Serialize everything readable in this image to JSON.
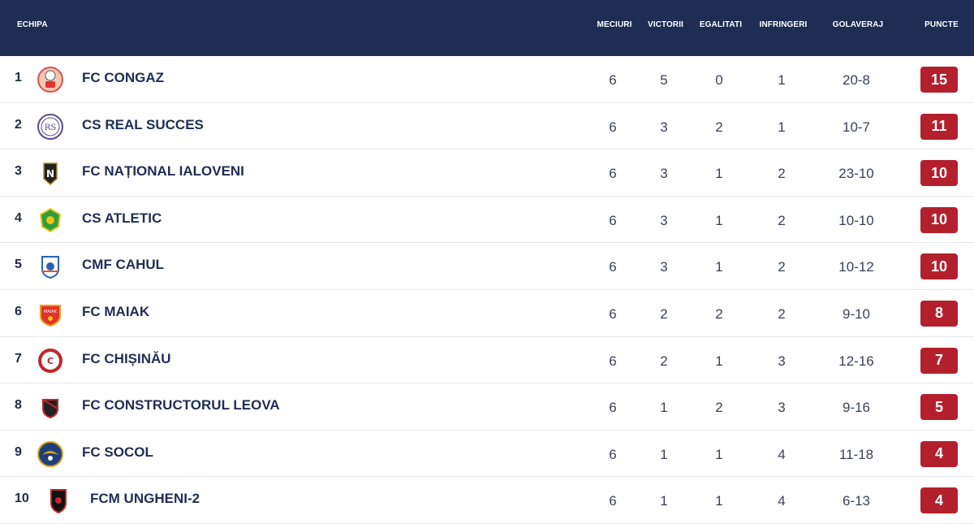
{
  "header": {
    "team": "ECHIPA",
    "played": "MECIURI",
    "wins": "VICTORII",
    "draws": "EGALITATI",
    "losses": "INFRINGERI",
    "goals": "GOLAVERAJ",
    "points": "PUNCTE"
  },
  "rows": [
    {
      "rank": "1",
      "team": "FC CONGAZ",
      "played": "6",
      "wins": "5",
      "draws": "0",
      "losses": "1",
      "goals": "20-8",
      "points": "15",
      "logo": "congaz-logo-icon"
    },
    {
      "rank": "2",
      "team": "CS REAL SUCCES",
      "played": "6",
      "wins": "3",
      "draws": "2",
      "losses": "1",
      "goals": "10-7",
      "points": "11",
      "logo": "real-succes-logo-icon"
    },
    {
      "rank": "3",
      "team": "FC NAȚIONAL IALOVENI",
      "played": "6",
      "wins": "3",
      "draws": "1",
      "losses": "2",
      "goals": "23-10",
      "points": "10",
      "logo": "national-logo-icon"
    },
    {
      "rank": "4",
      "team": "CS ATLETIC",
      "played": "6",
      "wins": "3",
      "draws": "1",
      "losses": "2",
      "goals": "10-10",
      "points": "10",
      "logo": "atletic-logo-icon"
    },
    {
      "rank": "5",
      "team": "CMF CAHUL",
      "played": "6",
      "wins": "3",
      "draws": "1",
      "losses": "2",
      "goals": "10-12",
      "points": "10",
      "logo": "cahul-logo-icon"
    },
    {
      "rank": "6",
      "team": "FC MAIAK",
      "played": "6",
      "wins": "2",
      "draws": "2",
      "losses": "2",
      "goals": "9-10",
      "points": "8",
      "logo": "maiak-logo-icon"
    },
    {
      "rank": "7",
      "team": "FC CHIȘINĂU",
      "played": "6",
      "wins": "2",
      "draws": "1",
      "losses": "3",
      "goals": "12-16",
      "points": "7",
      "logo": "chisinau-logo-icon"
    },
    {
      "rank": "8",
      "team": "FC CONSTRUCTORUL LEOVA",
      "played": "6",
      "wins": "1",
      "draws": "2",
      "losses": "3",
      "goals": "9-16",
      "points": "5",
      "logo": "leova-logo-icon"
    },
    {
      "rank": "9",
      "team": "FC SOCOL",
      "played": "6",
      "wins": "1",
      "draws": "1",
      "losses": "4",
      "goals": "11-18",
      "points": "4",
      "logo": "socol-logo-icon"
    },
    {
      "rank": "10",
      "team": "FCM UNGHENI-2",
      "played": "6",
      "wins": "1",
      "draws": "1",
      "losses": "4",
      "goals": "6-13",
      "points": "4",
      "logo": "ungheni-logo-icon"
    }
  ],
  "colors": {
    "header_bg": "#1f2d55",
    "points_badge": "#b3202c"
  }
}
